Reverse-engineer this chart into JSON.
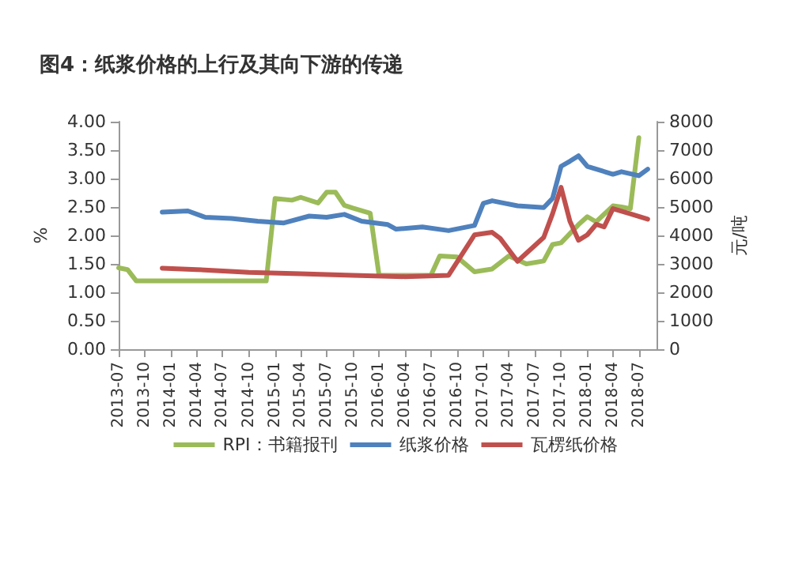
{
  "chart_data": {
    "type": "line",
    "title": "图4：纸浆价格的上行及其向下游的传递",
    "ylabel": "%",
    "y2label": "元/吨",
    "xlim": [
      "2013-07",
      "2018-09"
    ],
    "xticks": [
      "2013-07",
      "2013-10",
      "2014-01",
      "2014-04",
      "2014-07",
      "2014-10",
      "2015-01",
      "2015-04",
      "2015-07",
      "2015-10",
      "2016-01",
      "2016-04",
      "2016-07",
      "2016-10",
      "2017-01",
      "2017-04",
      "2017-07",
      "2017-10",
      "2018-01",
      "2018-04",
      "2018-07"
    ],
    "ylim": [
      0,
      4
    ],
    "yticks": [
      {
        "value": 0,
        "label": "0.00"
      },
      {
        "value": 0.5,
        "label": "0.50"
      },
      {
        "value": 1,
        "label": "1.00"
      },
      {
        "value": 1.5,
        "label": "1.50"
      },
      {
        "value": 2,
        "label": "2.00"
      },
      {
        "value": 2.5,
        "label": "2.50"
      },
      {
        "value": 3,
        "label": "3.00"
      },
      {
        "value": 3.5,
        "label": "3.50"
      },
      {
        "value": 4,
        "label": "4.00"
      }
    ],
    "y2lim": [
      0,
      8000
    ],
    "y2ticks": [
      0,
      1000,
      2000,
      3000,
      4000,
      5000,
      6000,
      7000,
      8000
    ],
    "grid": false,
    "legend": "bottom",
    "marker": "none",
    "line_style": "solid",
    "series": [
      {
        "name": "RPI：书籍报刊",
        "color": "#9bbb59",
        "x": [
          "2013-07",
          "2013-08",
          "2013-09",
          "2014-06",
          "2014-12",
          "2015-01",
          "2015-03",
          "2015-04",
          "2015-06",
          "2015-07",
          "2015-08",
          "2015-09",
          "2015-10",
          "2015-12",
          "2016-01",
          "2016-07",
          "2016-08",
          "2016-10",
          "2016-12",
          "2017-02",
          "2017-04",
          "2017-06",
          "2017-08",
          "2017-09",
          "2017-10",
          "2017-12",
          "2018-01",
          "2018-02",
          "2018-04",
          "2018-05",
          "2018-06",
          "2018-07"
        ],
        "values": [
          1.43,
          1.4,
          1.2,
          1.2,
          1.2,
          2.65,
          2.62,
          2.67,
          2.57,
          2.76,
          2.76,
          2.53,
          2.48,
          2.39,
          1.3,
          1.3,
          1.64,
          1.62,
          1.36,
          1.41,
          1.64,
          1.5,
          1.55,
          1.84,
          1.87,
          2.19,
          2.33,
          2.24,
          2.52,
          2.5,
          2.47,
          3.72
        ]
      },
      {
        "name": "纸浆价格",
        "color": "#4f81bd",
        "axis": "y2",
        "x": [
          "2013-12",
          "2014-03",
          "2014-05",
          "2014-08",
          "2014-11",
          "2015-02",
          "2015-05",
          "2015-07",
          "2015-09",
          "2015-11",
          "2016-02",
          "2016-03",
          "2016-06",
          "2016-09",
          "2016-12",
          "2017-01",
          "2017-02",
          "2017-05",
          "2017-08",
          "2017-09",
          "2017-10",
          "2017-11",
          "2017-12",
          "2018-01",
          "2018-04",
          "2018-05",
          "2018-07",
          "2018-08"
        ],
        "values": [
          4820,
          4860,
          4640,
          4600,
          4500,
          4440,
          4680,
          4640,
          4740,
          4500,
          4380,
          4220,
          4300,
          4170,
          4350,
          5130,
          5220,
          5040,
          4980,
          5300,
          6430,
          6610,
          6800,
          6430,
          6150,
          6240,
          6100,
          6330
        ]
      },
      {
        "name": "瓦楞纸价格",
        "color": "#c0504d",
        "axis": "y2",
        "x": [
          "2013-12",
          "2014-04",
          "2014-10",
          "2015-04",
          "2015-10",
          "2016-04",
          "2016-09",
          "2016-12",
          "2017-02",
          "2017-03",
          "2017-05",
          "2017-08",
          "2017-09",
          "2017-10",
          "2017-11",
          "2017-12",
          "2018-01",
          "2018-02",
          "2018-03",
          "2018-04",
          "2018-06",
          "2018-08"
        ],
        "values": [
          2850,
          2800,
          2700,
          2650,
          2600,
          2550,
          2600,
          4020,
          4110,
          3900,
          3090,
          3930,
          4760,
          5690,
          4500,
          3830,
          4020,
          4390,
          4300,
          4940,
          4760,
          4570
        ]
      }
    ]
  }
}
